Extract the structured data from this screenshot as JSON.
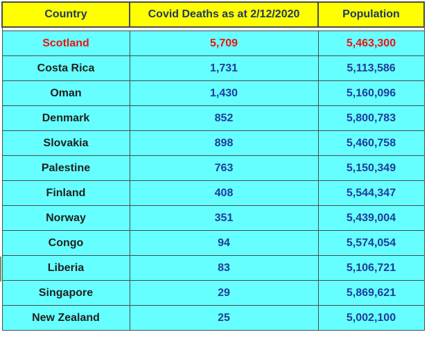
{
  "table": {
    "headers": [
      "Country",
      "Covid Deaths as at 2/12/2020",
      "Population"
    ],
    "rows": [
      {
        "country": "Scotland",
        "deaths": "5,709",
        "population": "5,463,300",
        "highlight": true
      },
      {
        "country": "Costa Rica",
        "deaths": "1,731",
        "population": "5,113,586"
      },
      {
        "country": "Oman",
        "deaths": "1,430",
        "population": "5,160,096"
      },
      {
        "country": "Denmark",
        "deaths": "852",
        "population": "5,800,783"
      },
      {
        "country": "Slovakia",
        "deaths": "898",
        "population": "5,460,758"
      },
      {
        "country": "Palestine",
        "deaths": "763",
        "population": "5,150,349"
      },
      {
        "country": "Finland",
        "deaths": "408",
        "population": "5,544,347"
      },
      {
        "country": "Norway",
        "deaths": "351",
        "population": "5,439,004"
      },
      {
        "country": "Congo",
        "deaths": "94",
        "population": "5,574,054"
      },
      {
        "country": "Liberia",
        "deaths": "83",
        "population": "5,106,721"
      },
      {
        "country": "Singapore",
        "deaths": "29",
        "population": "5,869,621"
      },
      {
        "country": "New Zealand",
        "deaths": "25",
        "population": "5,002,100"
      }
    ]
  },
  "colors": {
    "header_bg": "#ffff00",
    "row_bg": "#66ffff",
    "highlight_text": "#ee1111",
    "number_text": "#1f3c99"
  }
}
